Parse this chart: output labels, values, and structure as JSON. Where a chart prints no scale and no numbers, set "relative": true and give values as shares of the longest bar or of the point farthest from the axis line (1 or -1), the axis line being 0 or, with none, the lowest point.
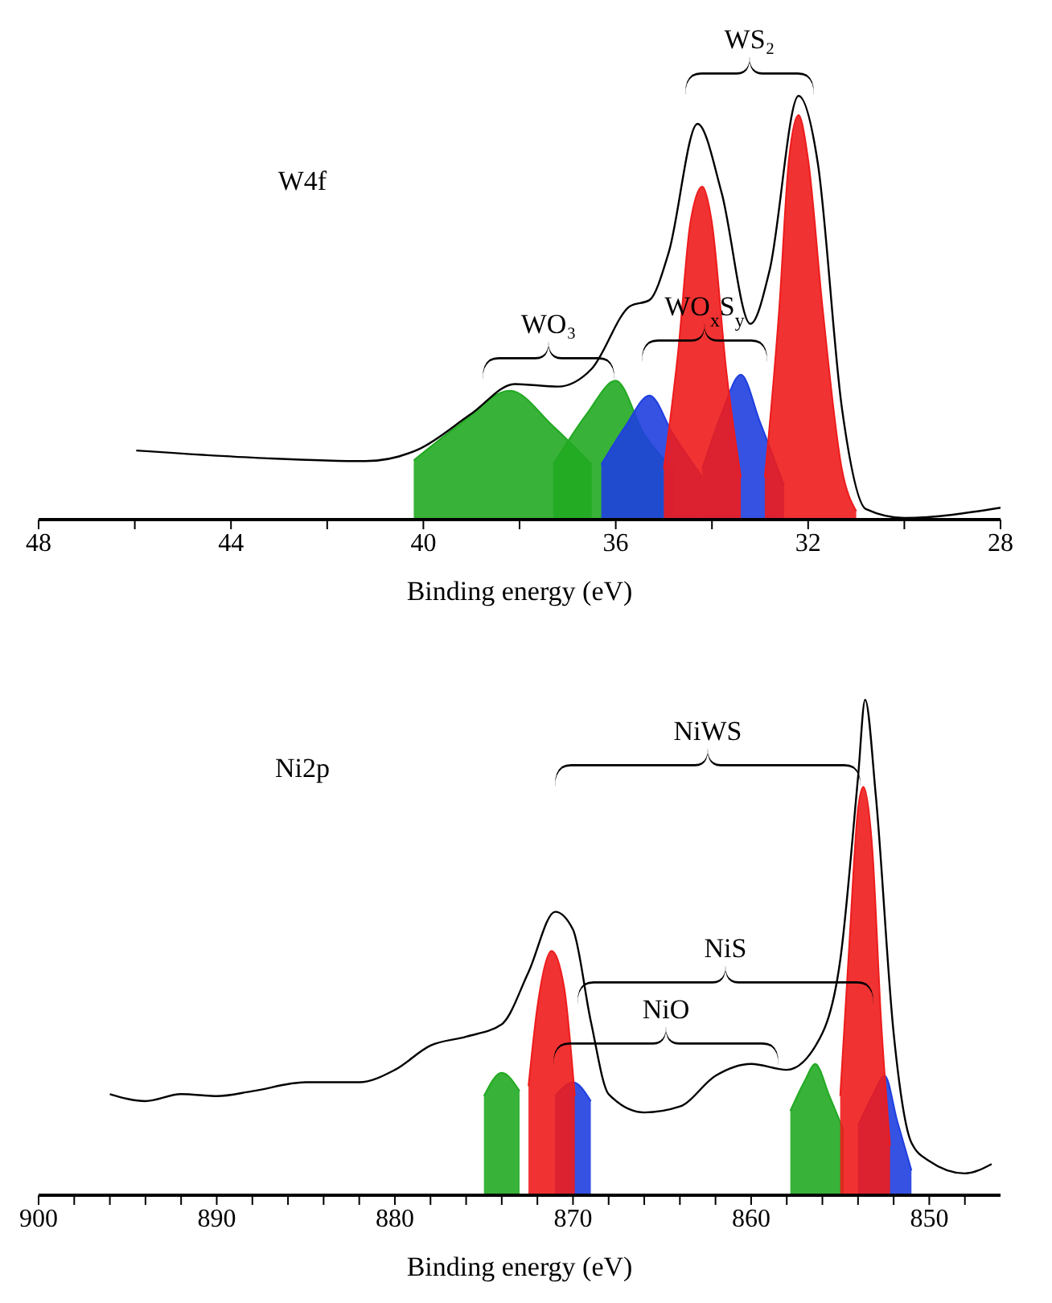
{
  "chart_data": [
    {
      "type": "area",
      "title": "W4f",
      "xlabel": "Binding energy (eV)",
      "relative": true,
      "xlim": [
        48,
        28
      ],
      "xticks": [
        48,
        {
          "value": 46,
          "label": null
        },
        44,
        {
          "value": 42,
          "label": null
        },
        40,
        {
          "value": 38,
          "label": null
        },
        36,
        {
          "value": 34,
          "label": null
        },
        32,
        {
          "value": 30,
          "label": null
        },
        28
      ],
      "series": [
        {
          "color": "#22aa22",
          "x": [
            40.2,
            39.3,
            38.2,
            37.3,
            36.5
          ],
          "values": [
            0.14,
            0.22,
            0.304,
            0.22,
            0.13
          ]
        },
        {
          "color": "#22aa22",
          "x": [
            37.3,
            36.6,
            36.0,
            35.4,
            34.8
          ],
          "values": [
            0.13,
            0.25,
            0.328,
            0.2,
            0.12
          ]
        },
        {
          "color": "#1f3fe0",
          "x": [
            36.3,
            35.8,
            35.3,
            34.8,
            34.2
          ],
          "values": [
            0.13,
            0.22,
            0.293,
            0.2,
            0.1
          ]
        },
        {
          "color": "#1f3fe0",
          "x": [
            34.2,
            33.8,
            33.4,
            33.0,
            32.5
          ],
          "values": [
            0.12,
            0.25,
            0.342,
            0.23,
            0.08
          ]
        },
        {
          "color": "#ee1c1c",
          "x": [
            35.0,
            34.7,
            34.45,
            34.2,
            34.0,
            33.7,
            33.4
          ],
          "values": [
            0.12,
            0.4,
            0.7,
            0.786,
            0.7,
            0.35,
            0.1
          ]
        },
        {
          "color": "#ee1c1c",
          "x": [
            32.9,
            32.6,
            32.4,
            32.2,
            32.0,
            31.7,
            31.3,
            31.0
          ],
          "values": [
            0.1,
            0.5,
            0.85,
            0.955,
            0.85,
            0.5,
            0.12,
            0.02
          ]
        },
        {
          "type": "line",
          "color": "#000000",
          "x": [
            45.97,
            43.3,
            41.2,
            40.1,
            39.0,
            38.1,
            37.2,
            36.5,
            35.7,
            35.3,
            34.9,
            34.3,
            33.8,
            33.2,
            32.8,
            32.2,
            31.8,
            31.3,
            30.8,
            30.0,
            28.0
          ],
          "values": [
            0.163,
            0.145,
            0.138,
            0.166,
            0.25,
            0.32,
            0.314,
            0.356,
            0.504,
            0.518,
            0.63,
            0.934,
            0.772,
            0.462,
            0.589,
            1.0,
            0.842,
            0.265,
            0.025,
            0.004,
            0.028
          ]
        }
      ],
      "annotations": [
        "WS₂",
        "WO₃",
        "WO$_{x}$S$_{y}$"
      ]
    },
    {
      "type": "area",
      "title": "Ni2p",
      "xlabel": "Binding energy (eV)",
      "relative": true,
      "xlim": [
        900,
        846
      ],
      "xticks": [
        900,
        {
          "value": 898,
          "label": null
        },
        {
          "value": 896,
          "label": null
        },
        {
          "value": 894,
          "label": null
        },
        {
          "value": 892,
          "label": null
        },
        890,
        {
          "value": 888,
          "label": null
        },
        {
          "value": 886,
          "label": null
        },
        {
          "value": 884,
          "label": null
        },
        {
          "value": 882,
          "label": null
        },
        880,
        {
          "value": 878,
          "label": null
        },
        {
          "value": 876,
          "label": null
        },
        {
          "value": 874,
          "label": null
        },
        {
          "value": 872,
          "label": null
        },
        870,
        {
          "value": 868,
          "label": null
        },
        {
          "value": 866,
          "label": null
        },
        {
          "value": 864,
          "label": null
        },
        {
          "value": 862,
          "label": null
        },
        860,
        {
          "value": 858,
          "label": null
        },
        {
          "value": 856,
          "label": null
        },
        {
          "value": 854,
          "label": null
        },
        {
          "value": 852,
          "label": null
        },
        850,
        {
          "value": 848,
          "label": null
        }
      ],
      "series": [
        {
          "color": "#22aa22",
          "x": [
            875.0,
            874.0,
            873.0
          ],
          "values": [
            0.2,
            0.247,
            0.21
          ]
        },
        {
          "color": "#22aa22",
          "x": [
            857.8,
            857.0,
            856.4,
            855.6,
            854.8
          ],
          "values": [
            0.17,
            0.23,
            0.265,
            0.2,
            0.13
          ]
        },
        {
          "color": "#1f3fe0",
          "x": [
            871.0,
            870.0,
            869.0
          ],
          "values": [
            0.2,
            0.228,
            0.19
          ]
        },
        {
          "color": "#1f3fe0",
          "x": [
            854.0,
            853.2,
            852.5,
            851.8,
            851.0
          ],
          "values": [
            0.14,
            0.2,
            0.241,
            0.15,
            0.05
          ]
        },
        {
          "color": "#ee1c1c",
          "x": [
            872.5,
            872.0,
            871.2,
            870.5,
            869.9
          ],
          "values": [
            0.22,
            0.38,
            0.493,
            0.42,
            0.2
          ]
        },
        {
          "color": "#ee1c1c",
          "x": [
            855.0,
            854.5,
            854.0,
            853.7,
            853.2,
            852.7,
            852.2
          ],
          "values": [
            0.2,
            0.5,
            0.78,
            0.824,
            0.7,
            0.35,
            0.1
          ]
        },
        {
          "type": "line",
          "color": "#000000",
          "x": [
            896,
            894,
            892,
            890,
            888,
            885,
            882,
            880,
            878,
            876,
            874,
            872.5,
            871,
            870,
            869,
            868,
            866,
            864,
            862,
            860,
            858,
            856,
            855,
            854,
            853.6,
            853,
            852,
            851,
            850,
            848,
            846.5
          ],
          "values": [
            0.204,
            0.19,
            0.204,
            0.2,
            0.21,
            0.228,
            0.228,
            0.253,
            0.302,
            0.32,
            0.345,
            0.45,
            0.572,
            0.536,
            0.351,
            0.204,
            0.167,
            0.179,
            0.241,
            0.265,
            0.253,
            0.327,
            0.474,
            0.843,
            1.0,
            0.806,
            0.327,
            0.106,
            0.069,
            0.044,
            0.063
          ]
        }
      ],
      "annotations": [
        "NiWS",
        "NiS",
        "NiO"
      ]
    }
  ]
}
